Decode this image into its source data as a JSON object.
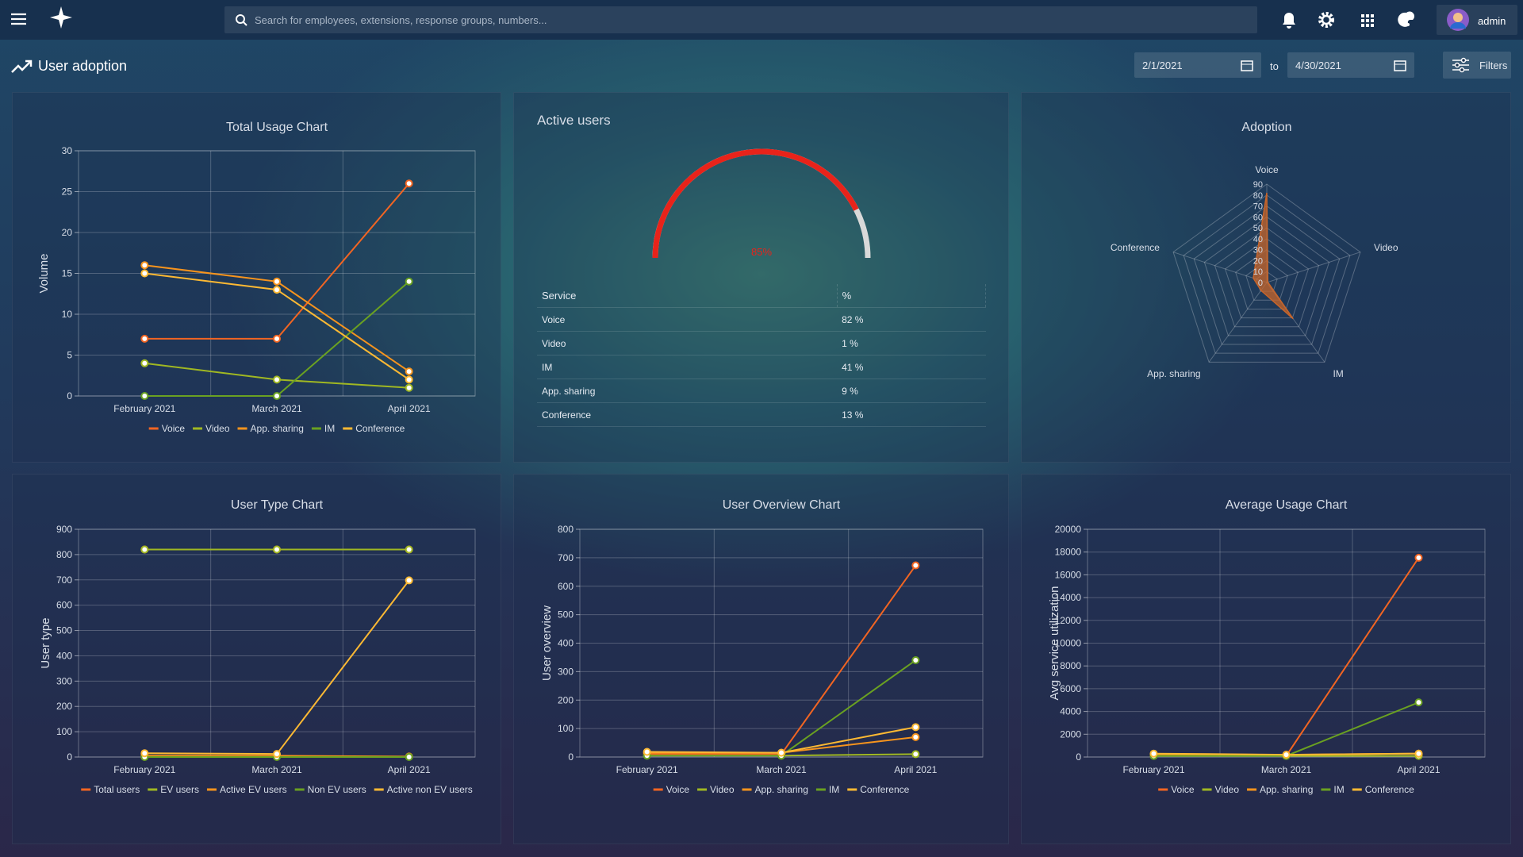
{
  "header": {
    "search_placeholder": "Search for employees, extensions, response groups, numbers...",
    "user": "admin"
  },
  "toolbar": {
    "title": "User adoption",
    "date_from": "2/1/2021",
    "to": "to",
    "date_to": "4/30/2021",
    "filters": "Filters"
  },
  "chart_data": [
    {
      "type": "line",
      "title": "Total Usage Chart",
      "y_label": "Volume",
      "categories": [
        "February 2021",
        "March 2021",
        "April 2021"
      ],
      "series": [
        {
          "name": "Voice",
          "color": "#f26522",
          "values": [
            7,
            7,
            26
          ]
        },
        {
          "name": "Video",
          "color": "#a0b822",
          "values": [
            4,
            2,
            1
          ]
        },
        {
          "name": "App. sharing",
          "color": "#f7941d",
          "values": [
            16,
            14,
            3
          ]
        },
        {
          "name": "IM",
          "color": "#6aa121",
          "values": [
            0,
            0,
            14
          ]
        },
        {
          "name": "Conference",
          "color": "#fdb933",
          "values": [
            15,
            13,
            2
          ]
        }
      ],
      "ylim": [
        0,
        30
      ],
      "yticks": [
        0,
        5,
        10,
        15,
        20,
        25,
        30
      ],
      "grid": true
    },
    {
      "type": "gauge",
      "title": "Active users",
      "value": 85,
      "value_label": "85%",
      "ylim": [
        0,
        100
      ],
      "color": "#e8231a",
      "table": {
        "columns": [
          "Service",
          "%"
        ],
        "rows": [
          [
            "Voice",
            "82 %"
          ],
          [
            "Video",
            "1 %"
          ],
          [
            "IM",
            "41 %"
          ],
          [
            "App. sharing",
            "9 %"
          ],
          [
            "Conference",
            "13 %"
          ]
        ]
      }
    },
    {
      "type": "radar",
      "title": "Adoption",
      "categories": [
        "Voice",
        "Video",
        "IM",
        "App. sharing",
        "Conference"
      ],
      "values": [
        82,
        1,
        41,
        9,
        13
      ],
      "color": "#c8652a",
      "rlim": [
        0,
        90
      ],
      "rticks": [
        0,
        10,
        20,
        30,
        40,
        50,
        60,
        70,
        80,
        90
      ]
    },
    {
      "type": "line",
      "title": "User Type Chart",
      "y_label": "User type",
      "categories": [
        "February 2021",
        "March 2021",
        "April 2021"
      ],
      "series": [
        {
          "name": "Total users",
          "color": "#f26522",
          "values": [
            820,
            820,
            820
          ]
        },
        {
          "name": "EV users",
          "color": "#a0b822",
          "values": [
            820,
            820,
            820
          ]
        },
        {
          "name": "Active EV users",
          "color": "#f7941d",
          "values": [
            5,
            5,
            2
          ]
        },
        {
          "name": "Non EV users",
          "color": "#6aa121",
          "values": [
            0,
            0,
            0
          ]
        },
        {
          "name": "Active non EV users",
          "color": "#fdb933",
          "values": [
            15,
            12,
            698
          ]
        }
      ],
      "ylim": [
        0,
        900
      ],
      "yticks": [
        0,
        100,
        200,
        300,
        400,
        500,
        600,
        700,
        800,
        900
      ],
      "grid": true
    },
    {
      "type": "line",
      "title": "User Overview Chart",
      "y_label": "User overview",
      "categories": [
        "February 2021",
        "March 2021",
        "April 2021"
      ],
      "series": [
        {
          "name": "Voice",
          "color": "#f26522",
          "values": [
            10,
            10,
            673
          ]
        },
        {
          "name": "Video",
          "color": "#a0b822",
          "values": [
            5,
            5,
            10
          ]
        },
        {
          "name": "App. sharing",
          "color": "#f7941d",
          "values": [
            15,
            15,
            70
          ]
        },
        {
          "name": "IM",
          "color": "#6aa121",
          "values": [
            5,
            5,
            340
          ]
        },
        {
          "name": "Conference",
          "color": "#fdb933",
          "values": [
            18,
            15,
            105
          ]
        }
      ],
      "ylim": [
        0,
        800
      ],
      "yticks": [
        0,
        100,
        200,
        300,
        400,
        500,
        600,
        700,
        800
      ],
      "grid": true
    },
    {
      "type": "line",
      "title": "Average Usage Chart",
      "y_label": "Avg service utilization",
      "categories": [
        "February 2021",
        "March 2021",
        "April 2021"
      ],
      "series": [
        {
          "name": "Voice",
          "color": "#f26522",
          "values": [
            200,
            100,
            17500
          ]
        },
        {
          "name": "Video",
          "color": "#a0b822",
          "values": [
            100,
            100,
            100
          ]
        },
        {
          "name": "App. sharing",
          "color": "#f7941d",
          "values": [
            250,
            200,
            300
          ]
        },
        {
          "name": "IM",
          "color": "#6aa121",
          "values": [
            100,
            100,
            4800
          ]
        },
        {
          "name": "Conference",
          "color": "#fdb933",
          "values": [
            300,
            200,
            300
          ]
        }
      ],
      "ylim": [
        0,
        20000
      ],
      "yticks": [
        0,
        2000,
        4000,
        6000,
        8000,
        10000,
        12000,
        14000,
        16000,
        18000,
        20000
      ],
      "grid": true
    }
  ]
}
